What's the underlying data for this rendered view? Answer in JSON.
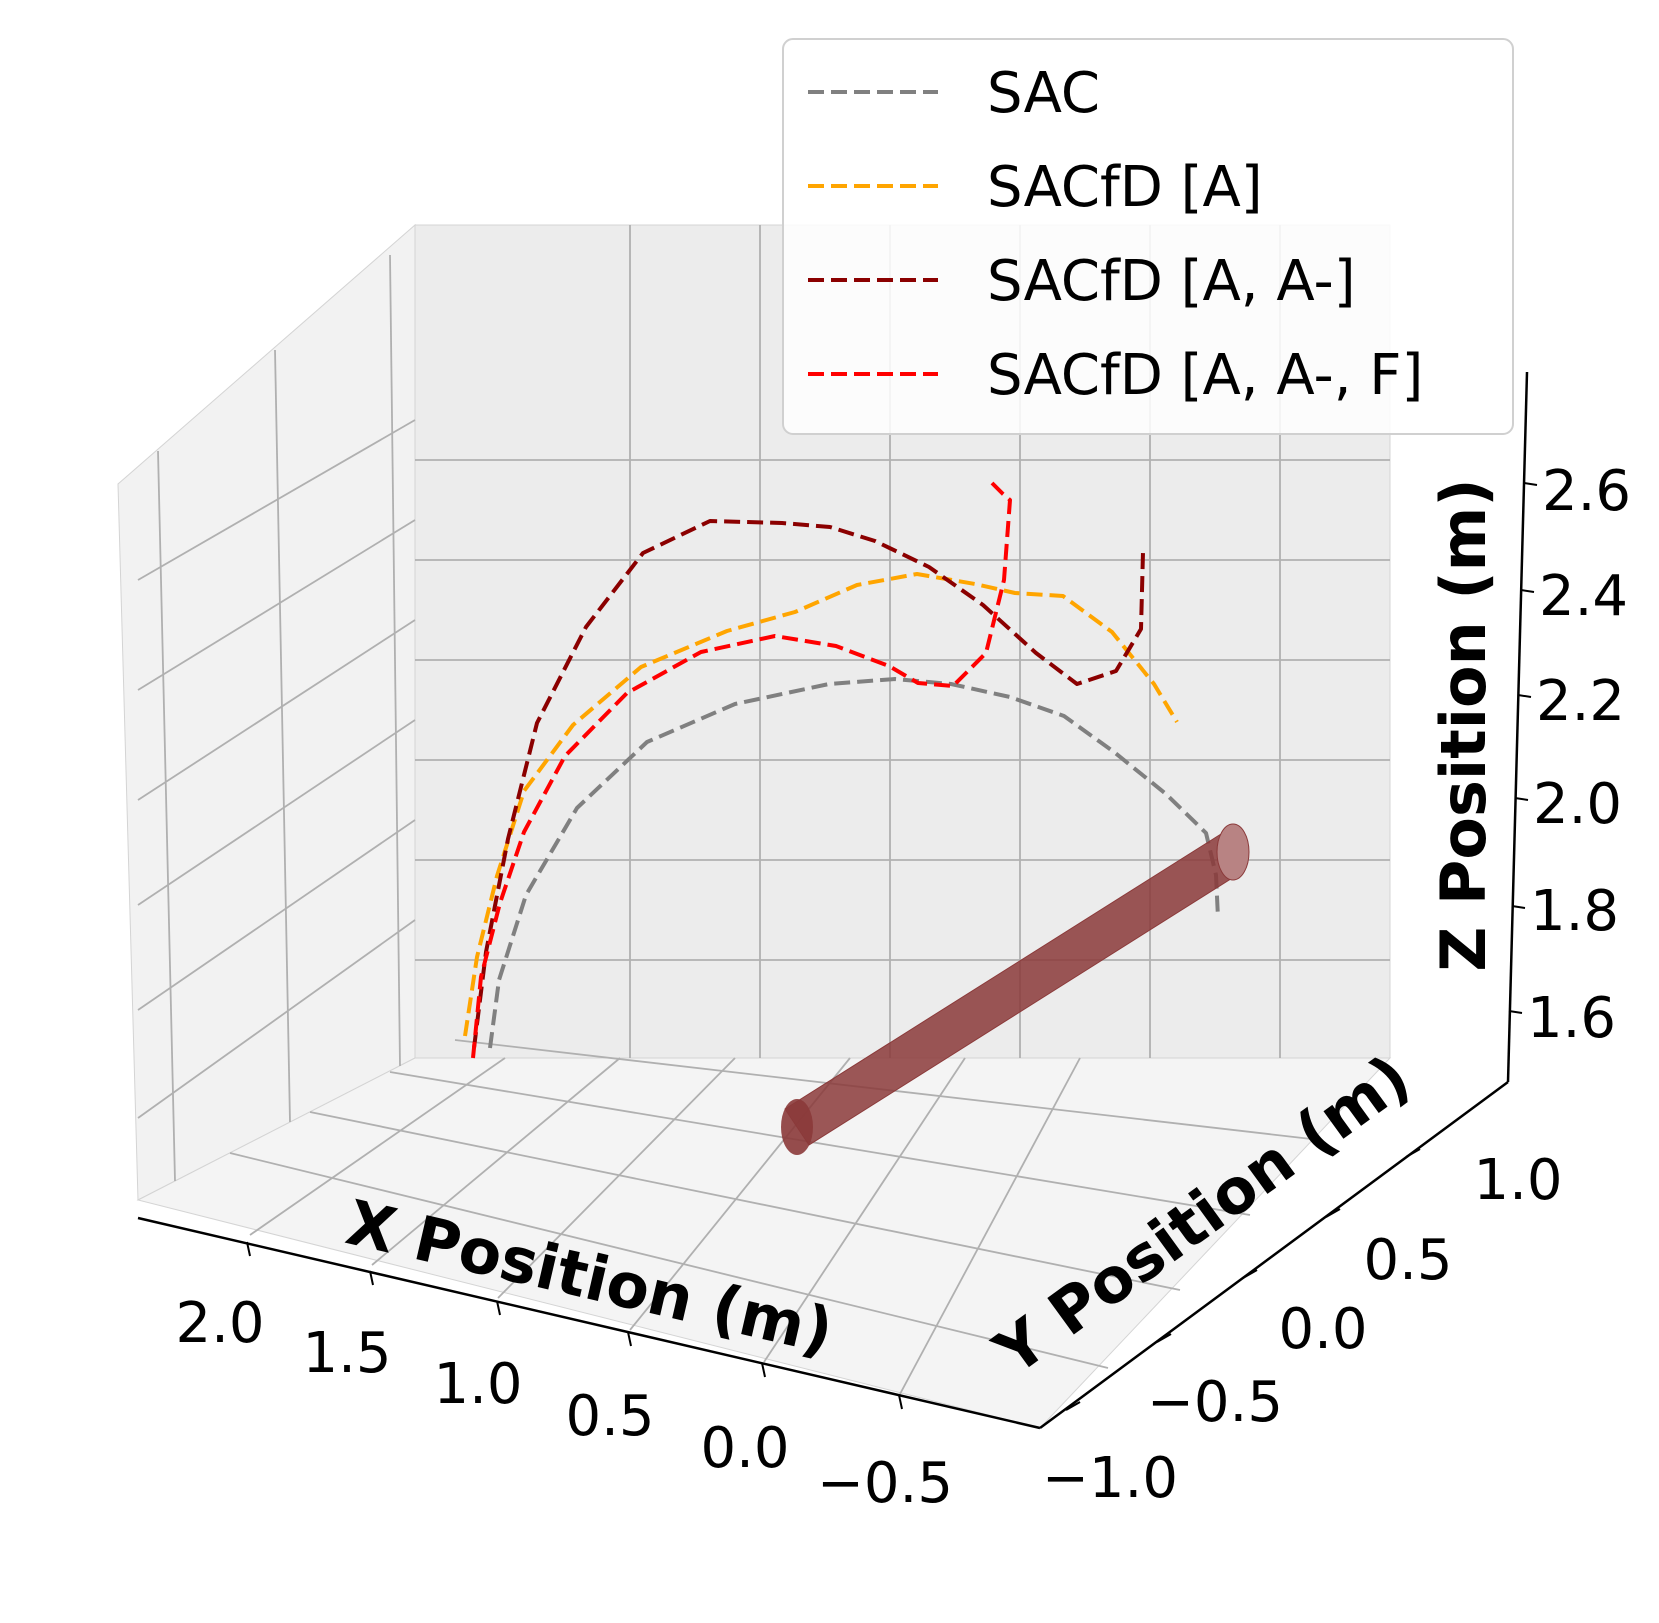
{
  "chart_data": {
    "type": "line3d",
    "title": "",
    "xlabel": "X Position (m)",
    "ylabel": "Y Position (m)",
    "zlabel": "Z Position (m)",
    "x_ticks": [
      "2.0",
      "1.5",
      "1.0",
      "0.5",
      "0.0",
      "−0.5"
    ],
    "y_ticks": [
      "−1.0",
      "−0.5",
      "0.0",
      "0.5",
      "1.0"
    ],
    "z_ticks": [
      "1.6",
      "1.8",
      "2.0",
      "2.2",
      "2.4",
      "2.6"
    ],
    "grid": true,
    "legend_position": "top-right",
    "series": [
      {
        "name": "SAC",
        "color": "#808080",
        "style": "dashed",
        "screen_path": [
          [
            490,
            1048
          ],
          [
            499,
            980
          ],
          [
            526,
            895
          ],
          [
            577,
            808
          ],
          [
            647,
            742
          ],
          [
            735,
            704
          ],
          [
            829,
            684
          ],
          [
            895,
            679
          ],
          [
            951,
            684
          ],
          [
            1010,
            697
          ],
          [
            1064,
            716
          ],
          [
            1114,
            752
          ],
          [
            1166,
            794
          ],
          [
            1206,
            833
          ],
          [
            1216,
            875
          ],
          [
            1218,
            918
          ]
        ]
      },
      {
        "name": "SACfD [A]",
        "color": "#FFA500",
        "style": "dashed",
        "screen_path": [
          [
            465,
            1036
          ],
          [
            477,
            957
          ],
          [
            497,
            876
          ],
          [
            524,
            791
          ],
          [
            573,
            725
          ],
          [
            641,
            667
          ],
          [
            727,
            631
          ],
          [
            795,
            612
          ],
          [
            857,
            585
          ],
          [
            917,
            574
          ],
          [
            975,
            584
          ],
          [
            1015,
            593
          ],
          [
            1063,
            596
          ],
          [
            1112,
            632
          ],
          [
            1154,
            684
          ],
          [
            1177,
            722
          ]
        ]
      },
      {
        "name": "SACfD [A, A-]",
        "color": "#8B0000",
        "style": "dashed",
        "screen_path": [
          [
            474,
            1048
          ],
          [
            486,
            952
          ],
          [
            508,
            839
          ],
          [
            537,
            723
          ],
          [
            586,
            627
          ],
          [
            643,
            553
          ],
          [
            710,
            521
          ],
          [
            782,
            523
          ],
          [
            830,
            527
          ],
          [
            875,
            541
          ],
          [
            929,
            567
          ],
          [
            983,
            605
          ],
          [
            1036,
            653
          ],
          [
            1077,
            684
          ],
          [
            1116,
            671
          ],
          [
            1141,
            629
          ],
          [
            1143,
            552
          ]
        ]
      },
      {
        "name": "SACfD [A, A-, F]",
        "color": "#FF0000",
        "style": "dashed",
        "screen_path": [
          [
            473,
            1058
          ],
          [
            481,
            977
          ],
          [
            500,
            903
          ],
          [
            524,
            832
          ],
          [
            565,
            756
          ],
          [
            627,
            693
          ],
          [
            701,
            652
          ],
          [
            775,
            636
          ],
          [
            836,
            646
          ],
          [
            889,
            666
          ],
          [
            918,
            683
          ],
          [
            953,
            686
          ],
          [
            986,
            653
          ],
          [
            1004,
            580
          ],
          [
            1010,
            500
          ],
          [
            1003,
            494
          ],
          [
            992,
            483
          ]
        ]
      }
    ],
    "object": {
      "name": "cylinder obstacle",
      "color": "#8B3A3A"
    }
  }
}
